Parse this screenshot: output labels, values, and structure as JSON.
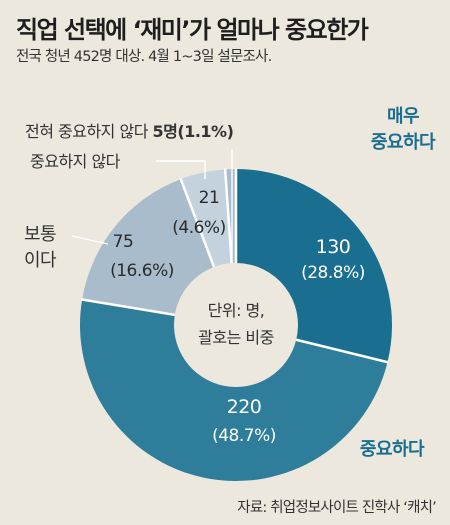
{
  "header": {
    "title": "직업 선택에 ‘재미’가 얼마나 중요한가",
    "subtitle": "전국 청년 452명 대상. 4월 1~3일 설문조사."
  },
  "footer": {
    "source": "자료: 취업정보사이트 진학사 ‘캐치’"
  },
  "chart_data": {
    "type": "pie",
    "style": "donut",
    "title": "직업 선택에 ‘재미’가 얼마나 중요한가",
    "center_label": [
      "단위: 명,",
      "괄호는 비중"
    ],
    "slices": [
      {
        "label": "매우 중요하다",
        "label_lines": [
          "매우",
          "중요하다"
        ],
        "value": 130,
        "pct_text": "(28.8%)",
        "color": "#1a6f91"
      },
      {
        "label": "중요하다",
        "label_lines": [
          "중요하다"
        ],
        "value": 220,
        "pct_text": "(48.7%)",
        "color": "#2e7e9b"
      },
      {
        "label": "보통이다",
        "label_lines": [
          "보통",
          "이다"
        ],
        "value": 75,
        "pct_text": "(16.6%)",
        "color": "#a8bccb"
      },
      {
        "label": "중요하지 않다",
        "label_lines": [
          "중요하지 않다"
        ],
        "value": 21,
        "pct_text": "(4.6%)",
        "color": "#c3d2dd"
      },
      {
        "label": "전혀 중요하지 않다",
        "label_lines": [
          "전혀 중요하지 않다"
        ],
        "value": 5,
        "pct_text": "(1.1%)",
        "inline_value": "5명(1.1%)",
        "color": "#a8bccb"
      }
    ],
    "colors": {
      "label_dark": "#333333",
      "label_accent": "#1a6f91",
      "inner_text_light": "#ffffff",
      "inner_text_dark": "#2b2b2b"
    }
  }
}
